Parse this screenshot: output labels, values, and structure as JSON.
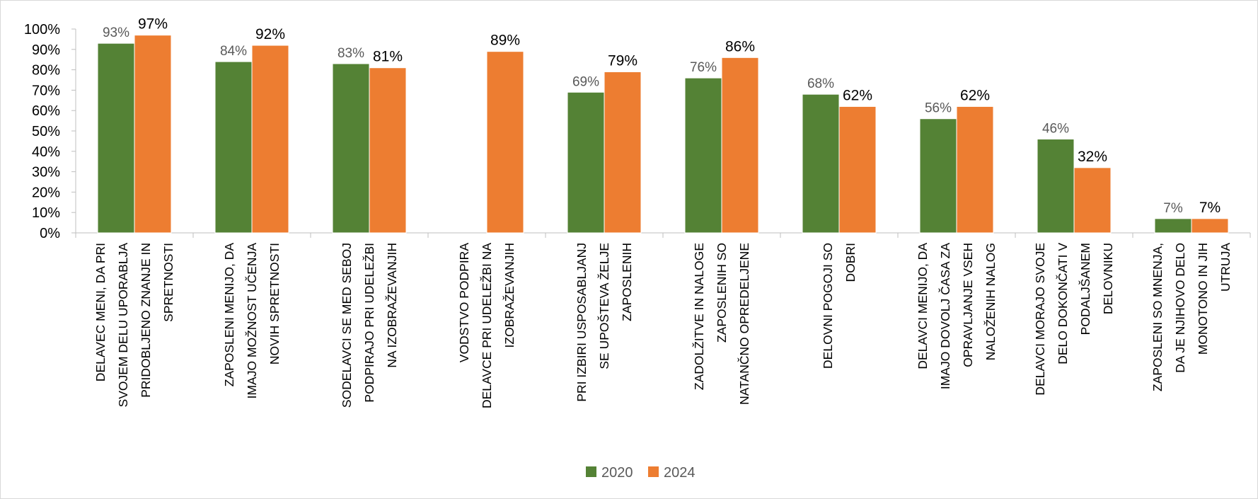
{
  "chart_data": {
    "type": "bar",
    "categories": [
      "DELAVEC MENI, DA PRI SVOJEM DELU UPORABLJA PRIDOBLJENO ZNANJE IN SPRETNOSTI",
      "ZAPOSLENI MENIJO, DA IMAJO MOŽNOST UČENJA NOVIH SPRETNOSTI",
      "SODELAVCI SE MED SEBOJ PODPIRAJO PRI UDELEŽBI NA IZOBRAŽEVANJIH",
      "VODSTVO PODPIRA DELAVCE PRI UDELEŽBI NA IZOBRAŽEVANJIH",
      "PRI IZBIRI USPOSABLJANJ SE UPOŠTEVA ŽELJE ZAPOSLENIH",
      "ZADOLŽITVE IN NALOGE ZAPOSLENIH SO NATANČNO OPREDELJENE",
      "DELOVNI POGOJI SO DOBRI",
      "DELAVCI MENIJO, DA IMAJO DOVOLJ ČASA ZA OPRAVLJANJE VSEH NALOŽENIH NALOG",
      "DELAVCI MORAJO SVOJE DELO DOKONČATI V PODALJŠANEM DELOVNIKU",
      "ZAPOSLENI SO MNENJA, DA JE NJIHOVO DELO MONOTONO IN JIH UTRUJA"
    ],
    "category_lines": [
      [
        "DELAVEC MENI, DA PRI",
        "SVOJEM DELU UPORABLJA",
        "PRIDOBLJENO ZNANJE IN",
        "SPRETNOSTI"
      ],
      [
        "ZAPOSLENI MENIJO, DA",
        "IMAJO MOŽNOST UČENJA",
        "NOVIH SPRETNOSTI"
      ],
      [
        "SODELAVCI SE MED SEBOJ",
        "PODPIRAJO PRI UDELEŽBI",
        "NA IZOBRAŽEVANJIH"
      ],
      [
        "VODSTVO PODPIRA",
        "DELAVCE PRI UDELEŽBI NA",
        "IZOBRAŽEVANJIH"
      ],
      [
        "PRI IZBIRI USPOSABLJANJ",
        "SE UPOŠTEVA ŽELJE",
        "ZAPOSLENIH"
      ],
      [
        "ZADOLŽITVE IN NALOGE",
        "ZAPOSLENIH SO",
        "NATANČNO OPREDELJENE"
      ],
      [
        "DELOVNI POGOJI SO",
        "DOBRI"
      ],
      [
        "DELAVCI MENIJO, DA",
        "IMAJO DOVOLJ ČASA ZA",
        "OPRAVLJANJE VSEH",
        "NALOŽENIH NALOG"
      ],
      [
        "DELAVCI MORAJO SVOJE",
        "DELO DOKONČATI V",
        "PODALJŠANEM",
        "DELOVNIKU"
      ],
      [
        "ZAPOSLENI SO MNENJA,",
        "DA JE NJIHOVO DELO",
        "MONOTONO IN JIH",
        "UTRUJA"
      ]
    ],
    "series": [
      {
        "name": "2020",
        "color": "#548235",
        "values": [
          93,
          84,
          83,
          null,
          69,
          76,
          68,
          56,
          46,
          7
        ],
        "labels": [
          "93%",
          "84%",
          "83%",
          "",
          "69%",
          "76%",
          "68%",
          "56%",
          "46%",
          "7%"
        ]
      },
      {
        "name": "2024",
        "color": "#ED7D31",
        "values": [
          97,
          92,
          81,
          89,
          79,
          86,
          62,
          62,
          32,
          7
        ],
        "labels": [
          "97%",
          "92%",
          "81%",
          "89%",
          "79%",
          "86%",
          "62%",
          "62%",
          "32%",
          "7%"
        ]
      }
    ],
    "y_ticks": [
      "0%",
      "10%",
      "20%",
      "30%",
      "40%",
      "50%",
      "60%",
      "70%",
      "80%",
      "90%",
      "100%"
    ],
    "ylim": [
      0,
      100
    ],
    "grid": false,
    "legend_position": "bottom"
  }
}
